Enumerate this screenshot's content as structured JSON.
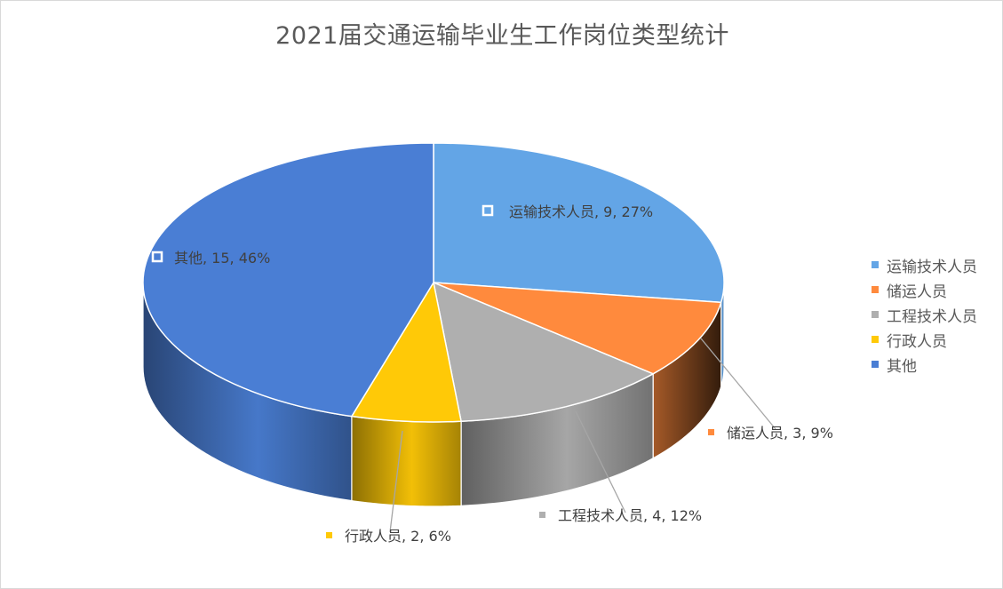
{
  "chart_data": {
    "type": "pie",
    "title": "2021届交通运输毕业生工作岗位类型统计",
    "categories": [
      "运输技术人员",
      "储运人员",
      "工程技术人员",
      "行政人员",
      "其他"
    ],
    "values": [
      9,
      3,
      4,
      2,
      15
    ],
    "percent_labels": [
      "27%",
      "9%",
      "12%",
      "6%",
      "46%"
    ],
    "data_labels": [
      "运输技术人员, 9, 27%",
      "储运人员, 3, 9%",
      "工程技术人员, 4, 12%",
      "行政人员, 2, 6%",
      "其他, 15, 46%"
    ],
    "colors": [
      "#63a5e6",
      "#ff8a3d",
      "#afafaf",
      "#ffc907",
      "#4a7ed4"
    ],
    "style": "3d",
    "legend_position": "right"
  }
}
